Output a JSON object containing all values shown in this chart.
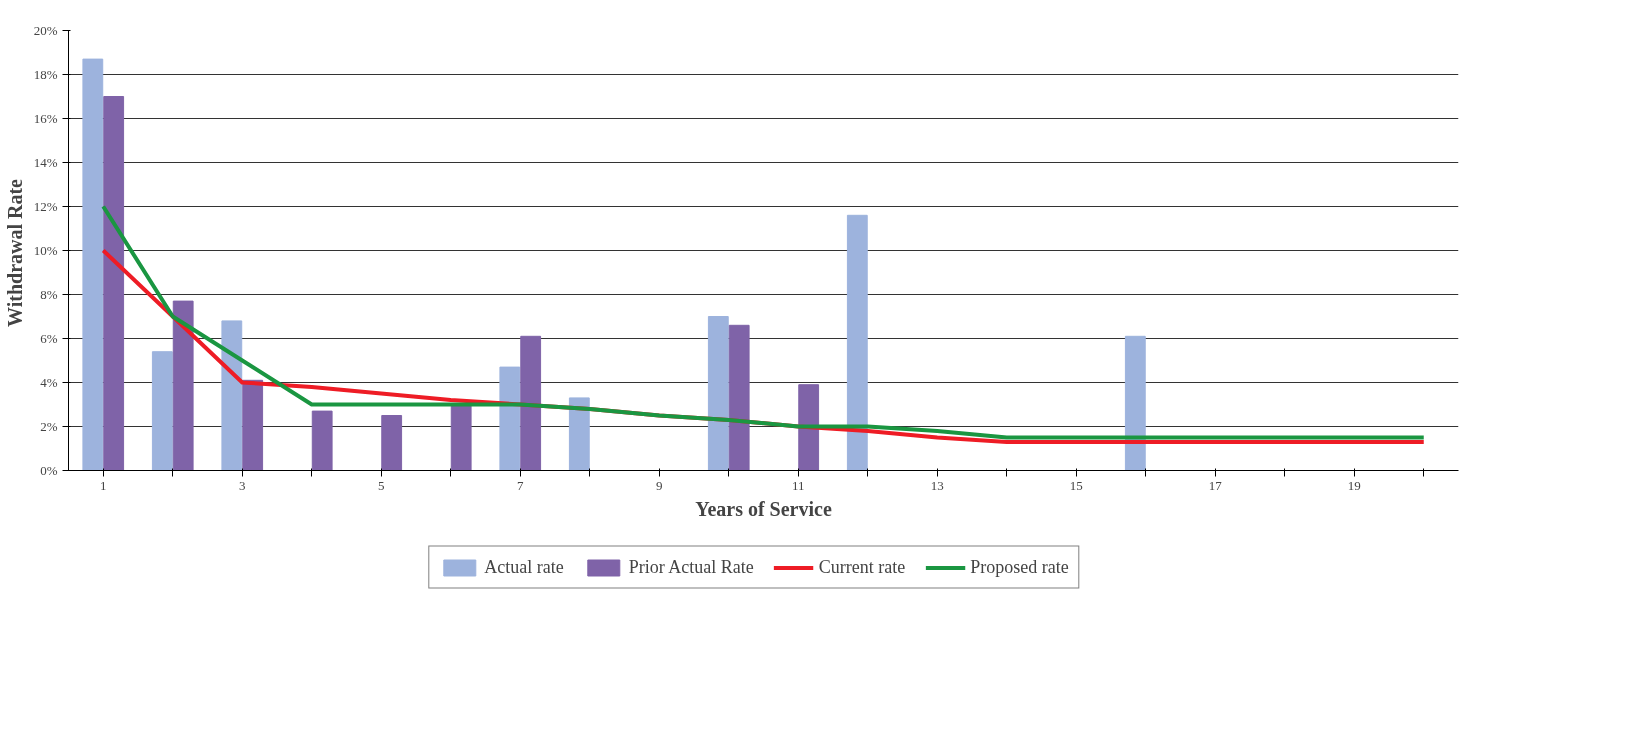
{
  "chart_data": {
    "type": "bar",
    "xlabel": "Years of Service",
    "ylabel": "Withdrawal  Rate",
    "categories": [
      "1",
      null,
      "3",
      null,
      "5",
      null,
      "7",
      null,
      "9",
      null,
      "11",
      null,
      "13",
      null,
      "15",
      null,
      "17",
      null,
      "19",
      null
    ],
    "series": [
      {
        "name": "Actual rate",
        "color": "#9db3dd",
        "values": [
          18.7,
          5.4,
          6.8,
          null,
          null,
          null,
          4.7,
          3.3,
          null,
          7.0,
          null,
          11.6,
          null,
          null,
          null,
          6.1,
          null,
          null,
          null,
          null
        ]
      },
      {
        "name": "Prior Actual Rate",
        "color": "#7f63a8",
        "values": [
          17.0,
          7.7,
          4.1,
          2.7,
          2.5,
          3.0,
          6.1,
          null,
          null,
          6.6,
          3.9,
          null,
          null,
          null,
          null,
          null,
          null,
          null,
          null,
          null
        ]
      },
      {
        "name": "Current rate",
        "type": "line",
        "color": "#ee1c25",
        "values": [
          10,
          7,
          4,
          3.8,
          3.5,
          3.2,
          3.0,
          2.8,
          2.5,
          2.3,
          2.0,
          1.8,
          1.5,
          1.3,
          1.3,
          1.3,
          1.3,
          1.3,
          1.3,
          1.3
        ]
      },
      {
        "name": "Proposed rate",
        "type": "line",
        "color": "#1a9641",
        "values": [
          12,
          7,
          5,
          3,
          3,
          3,
          3,
          2.8,
          2.5,
          2.3,
          2.0,
          2.0,
          1.8,
          1.5,
          1.5,
          1.5,
          1.5,
          1.5,
          1.5,
          1.5
        ]
      }
    ],
    "ylim": [
      0,
      20
    ],
    "yticks": [
      {
        "value": 0,
        "label": "0%"
      },
      {
        "value": 2,
        "label": "2%"
      },
      {
        "value": 4,
        "label": "4%"
      },
      {
        "value": 6,
        "label": "6%"
      },
      {
        "value": 8,
        "label": "8%"
      },
      {
        "value": 10,
        "label": "10%"
      },
      {
        "value": 12,
        "label": "12%"
      },
      {
        "value": 14,
        "label": "14%"
      },
      {
        "value": 16,
        "label": "16%"
      },
      {
        "value": 18,
        "label": "18%"
      },
      {
        "value": 20,
        "label": "20%"
      }
    ],
    "grid": "y",
    "legend": "bottom"
  }
}
